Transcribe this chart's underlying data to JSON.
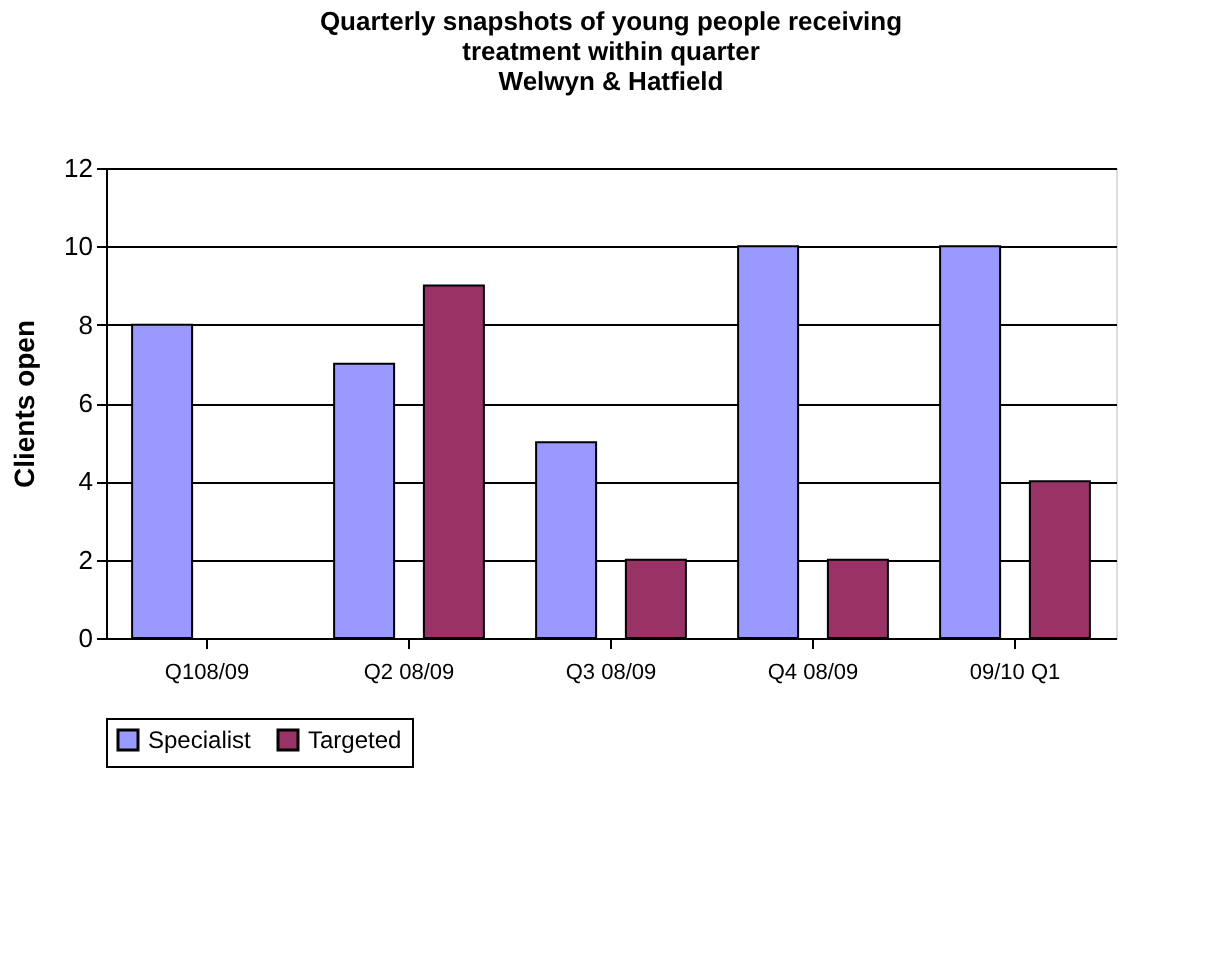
{
  "chart_data": {
    "type": "bar",
    "title": "Quarterly snapshots of young people receiving treatment within quarter",
    "subtitle": "Welwyn & Hatfield",
    "ylabel": "Clients open",
    "categories": [
      "Q108/09",
      "Q2 08/09",
      "Q3 08/09",
      "Q4 08/09",
      "09/10 Q1"
    ],
    "series": [
      {
        "name": "Specialist",
        "color": "#9999ff",
        "values": [
          8,
          7,
          5,
          10,
          10
        ]
      },
      {
        "name": "Targeted",
        "color": "#993366",
        "values": [
          null,
          9,
          2,
          2,
          4
        ]
      }
    ],
    "ylim": [
      0,
      12
    ],
    "yticks": [
      0,
      2,
      4,
      6,
      8,
      10,
      12
    ],
    "grid": "y",
    "legend": "bottom"
  }
}
